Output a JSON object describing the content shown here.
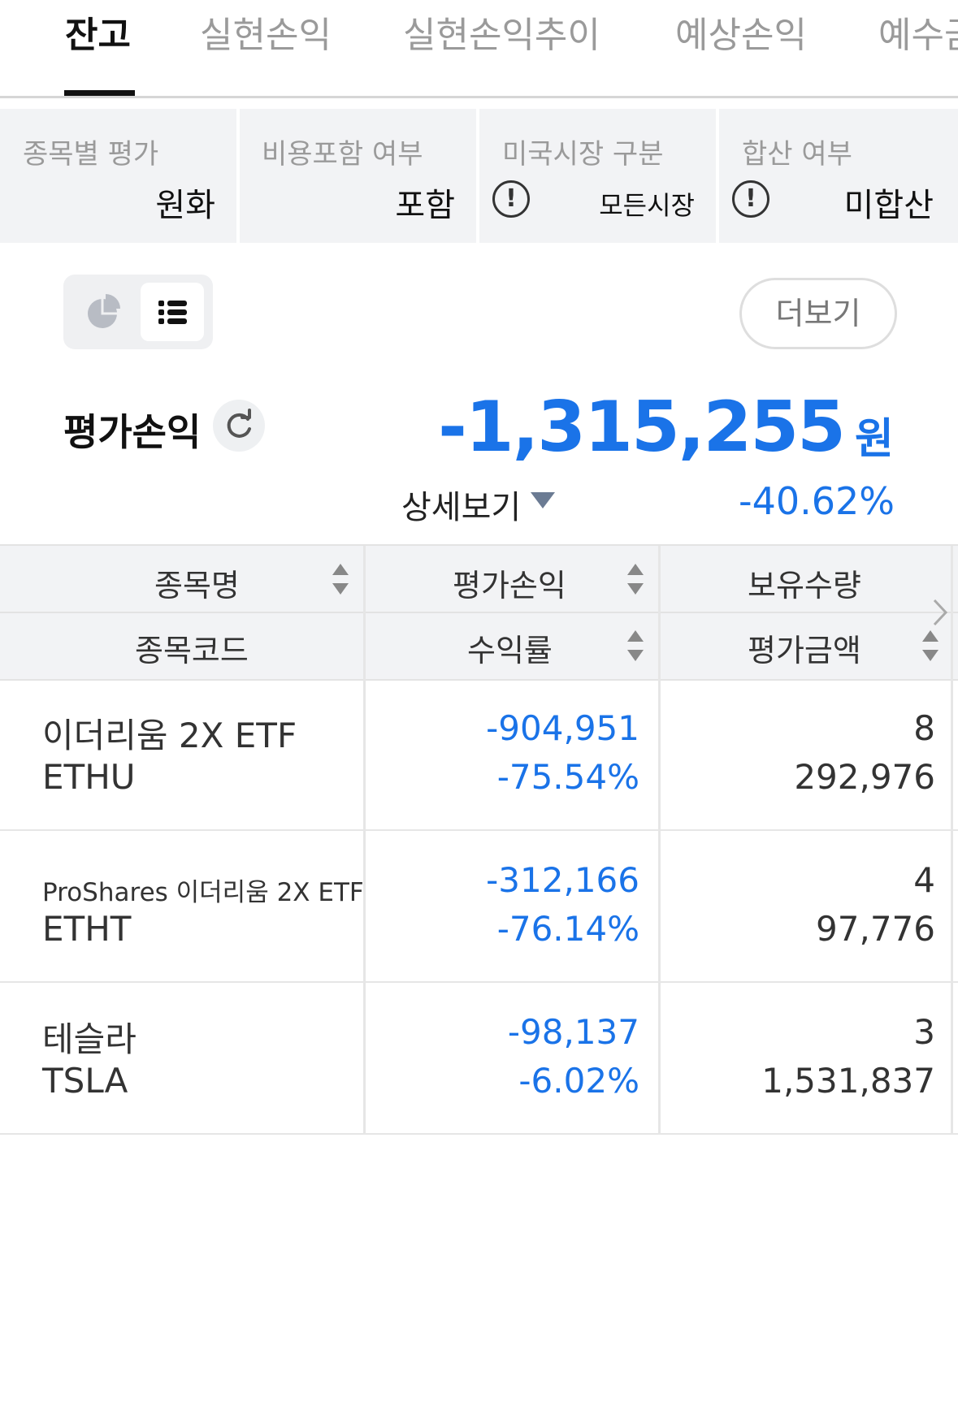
{
  "tabs": [
    "잔고",
    "실현손익",
    "실현손익추이",
    "예상손익",
    "예수금"
  ],
  "filters": [
    {
      "label": "종목별 평가",
      "value": "원화"
    },
    {
      "label": "비용포함 여부",
      "value": "포함"
    },
    {
      "label": "미국시장 구분",
      "value": "모든시장",
      "icon": "info-icon"
    },
    {
      "label": "합산 여부",
      "value": "미합산",
      "icon": "info-icon"
    }
  ],
  "toolbar": {
    "more_label": "더보기"
  },
  "summary": {
    "label": "평가손익",
    "value": "-1,315,255",
    "unit": "원",
    "detail_label": "상세보기",
    "percent": "-40.62%"
  },
  "table": {
    "headers": {
      "row1": [
        "종목명",
        "평가손익",
        "보유수량"
      ],
      "row2": [
        "종목코드",
        "수익률",
        "평가금액"
      ]
    },
    "rows": [
      {
        "name": "이더리움 2X ETF",
        "code": "ETHU",
        "pnl": "-904,951",
        "rate": "-75.54%",
        "qty": "8",
        "amount": "292,976"
      },
      {
        "name": "ProShares 이더리움 2X ETF",
        "code": "ETHT",
        "pnl": "-312,166",
        "rate": "-76.14%",
        "qty": "4",
        "amount": "97,776"
      },
      {
        "name": "테슬라",
        "code": "TSLA",
        "pnl": "-98,137",
        "rate": "-6.02%",
        "qty": "3",
        "amount": "1,531,837"
      }
    ]
  },
  "colors": {
    "accent_blue": "#1a73e8",
    "panel_gray": "#f2f3f5"
  }
}
